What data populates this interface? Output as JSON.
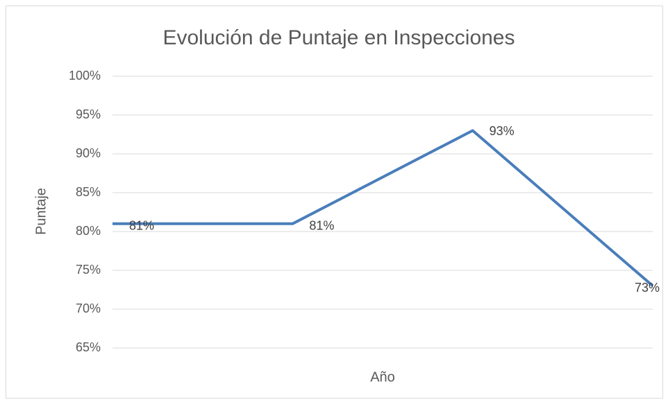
{
  "chart_data": {
    "type": "line",
    "title": "Evolución de Puntaje en Inspecciones",
    "x_label": "Año",
    "y_label": "Puntaje",
    "categories": [
      null,
      null,
      null,
      null
    ],
    "series": [
      {
        "name": "Puntaje",
        "color": "#4a7ebb",
        "values": [
          81,
          81,
          93,
          73
        ],
        "value_labels": [
          "81%",
          "81%",
          "93%",
          "73%"
        ]
      }
    ],
    "ylim": [
      65,
      100
    ],
    "yticks": [
      {
        "value": 65,
        "label": "65%"
      },
      {
        "value": 70,
        "label": "70%"
      },
      {
        "value": 75,
        "label": "75%"
      },
      {
        "value": 80,
        "label": "80%"
      },
      {
        "value": 85,
        "label": "85%"
      },
      {
        "value": 90,
        "label": "90%"
      },
      {
        "value": 95,
        "label": "95%"
      },
      {
        "value": 100,
        "label": "100%"
      }
    ],
    "grid": true
  }
}
